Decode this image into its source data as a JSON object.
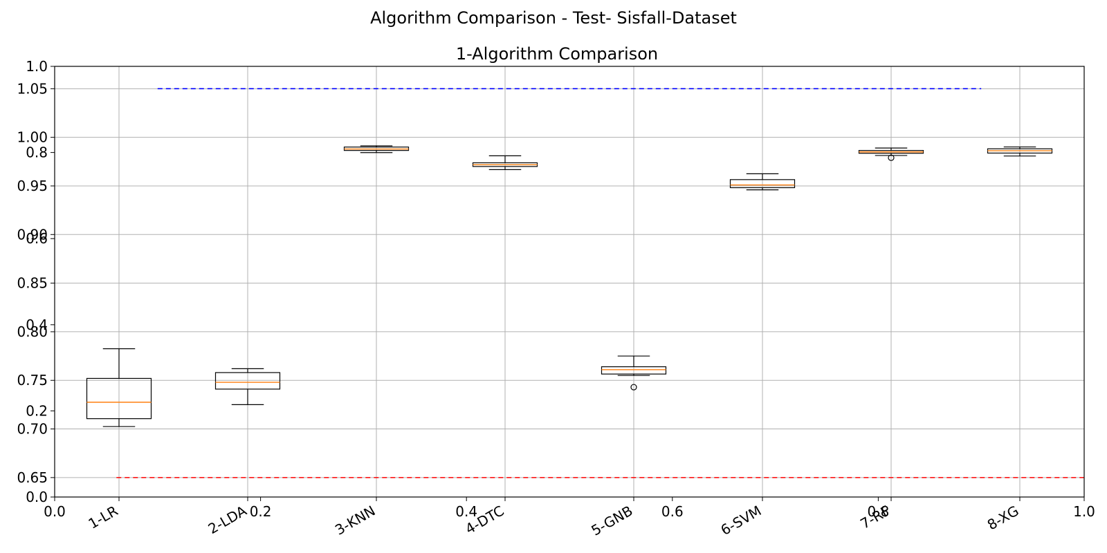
{
  "figure": {
    "suptitle": "Algorithm Comparison - Test- Sisfall-Dataset"
  },
  "chart_data": {
    "type": "boxplot",
    "title": "1-Algorithm Comparison",
    "xlabel": "",
    "ylabel": "",
    "ylim": [
      0.63,
      1.073
    ],
    "yticks": [
      "0.65",
      "0.70",
      "0.75",
      "0.80",
      "0.85",
      "0.90",
      "0.95",
      "1.00",
      "1.05"
    ],
    "grid": true,
    "categories": [
      "1-LR",
      "2-LDA",
      "3-KNN",
      "4-DTC",
      "5-GNB",
      "6-SVM",
      "7-RF",
      "8-XG"
    ],
    "boxes": [
      {
        "label": "1-LR",
        "whislo": 0.7025,
        "q1": 0.7106,
        "med": 0.7275,
        "q3": 0.752,
        "whishi": 0.7825,
        "fliers": []
      },
      {
        "label": "2-LDA",
        "whislo": 0.725,
        "q1": 0.741,
        "med": 0.748,
        "q3": 0.758,
        "whishi": 0.762,
        "fliers": []
      },
      {
        "label": "3-KNN",
        "whislo": 0.9843,
        "q1": 0.9865,
        "med": 0.988,
        "q3": 0.99,
        "whishi": 0.9912,
        "fliers": []
      },
      {
        "label": "4-DTC",
        "whislo": 0.9668,
        "q1": 0.97,
        "med": 0.9718,
        "q3": 0.9738,
        "whishi": 0.981,
        "fliers": []
      },
      {
        "label": "5-GNB",
        "whislo": 0.755,
        "q1": 0.7565,
        "med": 0.761,
        "q3": 0.764,
        "whishi": 0.775,
        "fliers": [
          0.743
        ]
      },
      {
        "label": "6-SVM",
        "whislo": 0.946,
        "q1": 0.9482,
        "med": 0.951,
        "q3": 0.9565,
        "whishi": 0.9625,
        "fliers": []
      },
      {
        "label": "7-RF",
        "whislo": 0.9813,
        "q1": 0.9836,
        "med": 0.985,
        "q3": 0.9865,
        "whishi": 0.989,
        "fliers": [
          0.979
        ]
      },
      {
        "label": "8-XG",
        "whislo": 0.9808,
        "q1": 0.9838,
        "med": 0.9862,
        "q3": 0.9882,
        "whishi": 0.9901,
        "fliers": []
      }
    ],
    "reference_lines": [
      {
        "y": 1.05,
        "x_start": 1.3,
        "x_end": 7.7,
        "color": "#0000ff",
        "style": "dashed"
      },
      {
        "y": 0.65,
        "x_start": 0.98,
        "x_end": 8.5,
        "color": "#ff0000",
        "style": "dashed"
      }
    ],
    "overlay_axes": {
      "xticks": [
        "0.0",
        "0.2",
        "0.4",
        "0.6",
        "0.8",
        "1.0"
      ],
      "yticks": [
        "0.0",
        "0.2",
        "0.4",
        "0.6",
        "0.8",
        "1.0"
      ],
      "xlim": [
        0,
        1
      ],
      "ylim": [
        0,
        1
      ]
    },
    "colors": {
      "box": "#000000",
      "median": "#ff7f0e",
      "grid": "#b0b0b0"
    }
  }
}
